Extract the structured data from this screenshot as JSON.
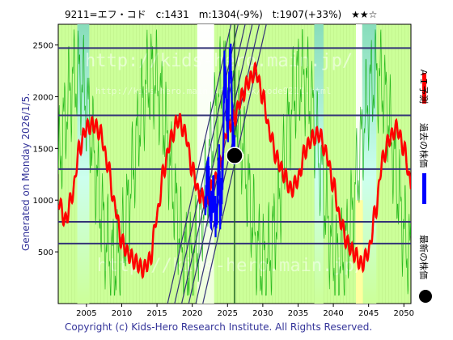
{
  "chart_data": {
    "type": "line",
    "title": "9211=エフ・コド　c:1431　m:1304(-9%)　t:1907(+33%)　★★☆",
    "generated_label": "Generated on Monday 2026/1/5.",
    "copyright": "Copyright (c) Kids-Hero Research Institute. All Rights Reserved.",
    "watermark_main": "http://kids-hero.main.jp/",
    "watermark_sub": "http://kids-hero.main.jp/stock/code9211.html",
    "watermark_bottom": "http://kids-hero.main.jp/",
    "xlim": [
      2001,
      2051
    ],
    "ylim": [
      0,
      2700
    ],
    "x_ticks": [
      2005,
      2010,
      2015,
      2020,
      2025,
      2030,
      2035,
      2040,
      2045,
      2050
    ],
    "y_ticks": [
      500,
      1000,
      1500,
      2000,
      2500
    ],
    "h_lines": [
      580,
      790,
      1300,
      1820,
      2470
    ],
    "legend": {
      "forecast": "ＡＩ予測",
      "past": "過去の株価",
      "latest": "最新の株価"
    },
    "colors": {
      "background": "#ccff99",
      "forecast": "#ff0000",
      "past": "#0000ff",
      "latest": "#000000",
      "hline": "#333377",
      "trend": "#333377",
      "indicator": "#00aa00",
      "band_light": "#ccffee",
      "band_teal": "#88ddbb",
      "band_white": "#ffffff",
      "band_yellow": "#ffff99"
    },
    "bands": [
      {
        "x0": 2003.7,
        "x1": 2005.4,
        "color": "band_teal",
        "y_fade": 0.6
      },
      {
        "x0": 2020.7,
        "x1": 2023.1,
        "color": "band_white",
        "y_fade": 0
      },
      {
        "x0": 2037.3,
        "x1": 2038.6,
        "color": "band_teal",
        "y_fade": 0.6
      },
      {
        "x0": 2043.2,
        "x1": 2044.1,
        "color": "band_white",
        "y_fade": 0.5
      },
      {
        "x0": 2044.1,
        "x1": 2046.1,
        "color": "band_teal",
        "y_fade": 0.5
      },
      {
        "x0": 2043.2,
        "x1": 2044.2,
        "color": "band_yellow",
        "y_fade": 0,
        "y1": 1000
      }
    ],
    "forecast_series": {
      "name": "ＡＩ予測",
      "x": [
        2001.0,
        2002.0,
        2003.0,
        2004.0,
        2005.0,
        2006.0,
        2007.0,
        2008.0,
        2009.0,
        2010.0,
        2011.0,
        2012.0,
        2013.0,
        2014.0,
        2015.0,
        2016.0,
        2017.0,
        2018.0,
        2019.0,
        2020.0,
        2021.0,
        2022.0,
        2023.0,
        2024.0,
        2025.0,
        2026.0,
        2027.0,
        2028.0,
        2029.0,
        2030.0,
        2031.0,
        2032.0,
        2033.0,
        2034.0,
        2035.0,
        2036.0,
        2037.0,
        2038.0,
        2039.0,
        2040.0,
        2041.0,
        2042.0,
        2043.0,
        2044.0,
        2045.0,
        2046.0,
        2047.0,
        2048.0,
        2049.0,
        2050.0,
        2051.0
      ],
      "y": [
        1000,
        800,
        1050,
        1500,
        1700,
        1730,
        1650,
        1350,
        950,
        600,
        470,
        400,
        330,
        420,
        850,
        1300,
        1600,
        1780,
        1650,
        1300,
        1050,
        1000,
        1150,
        1350,
        1700,
        1800,
        2000,
        2150,
        2250,
        2000,
        1650,
        1400,
        1250,
        1100,
        1200,
        1480,
        1600,
        1640,
        1450,
        1150,
        800,
        580,
        480,
        380,
        500,
        900,
        1400,
        1600,
        1700,
        1500,
        1150
      ]
    },
    "past_series": {
      "name": "過去の株価",
      "x": [
        2021.8,
        2022.2,
        2022.6,
        2023.0,
        2023.4,
        2023.8,
        2024.0,
        2024.3,
        2024.6,
        2025.0,
        2025.4,
        2025.8,
        2026.0
      ],
      "y": [
        900,
        1300,
        850,
        1050,
        800,
        1400,
        850,
        1250,
        2300,
        1700,
        2400,
        1600,
        1431
      ]
    },
    "latest_point": {
      "x": 2026.0,
      "y": 1431,
      "value": 1431
    },
    "trend_lines": [
      {
        "x0": 2016.5,
        "y0": 0,
        "x1": 2025.5,
        "y1": 2700
      },
      {
        "x0": 2017.5,
        "y0": 0,
        "x1": 2026.5,
        "y1": 2700
      },
      {
        "x0": 2018.5,
        "y0": 0,
        "x1": 2027.5,
        "y1": 2700
      },
      {
        "x0": 2019.5,
        "y0": 0,
        "x1": 2028.5,
        "y1": 2700
      },
      {
        "x0": 2020.5,
        "y0": 0,
        "x1": 2029.5,
        "y1": 2700
      },
      {
        "x0": 2021.5,
        "y0": 0,
        "x1": 2030.5,
        "y1": 2700
      },
      {
        "x0": 2026.0,
        "y0": 0,
        "x1": 2026.0,
        "y1": 2700
      }
    ]
  }
}
